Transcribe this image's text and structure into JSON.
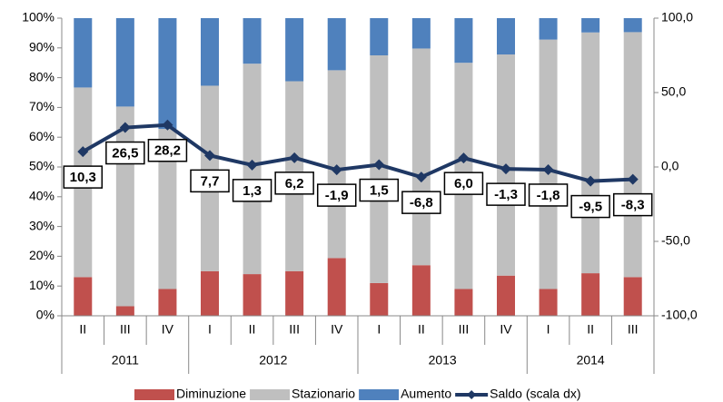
{
  "chart_data": {
    "type": "bar",
    "stacked": true,
    "categories": [
      "II",
      "III",
      "IV",
      "I",
      "II",
      "III",
      "IV",
      "I",
      "II",
      "III",
      "IV",
      "I",
      "II",
      "III"
    ],
    "years": [
      "2011",
      "2011",
      "2011",
      "2012",
      "2012",
      "2012",
      "2012",
      "2013",
      "2013",
      "2013",
      "2013",
      "2014",
      "2014",
      "2014"
    ],
    "series": [
      {
        "name": "Diminuzione",
        "type": "bar",
        "color": "#c0504d",
        "values": [
          13,
          3.2,
          9,
          15,
          14,
          15,
          19.4,
          11,
          17,
          9,
          13.5,
          9,
          14.3,
          13
        ]
      },
      {
        "name": "Stazionario",
        "type": "bar",
        "color": "#bfbfbf",
        "values": [
          63.7,
          67.1,
          53.8,
          62.3,
          70.7,
          63.8,
          63.1,
          76.5,
          72.8,
          76,
          74.3,
          83.8,
          80.9,
          82.3
        ]
      },
      {
        "name": "Aumento",
        "type": "bar",
        "color": "#4f81bd",
        "values": [
          23.3,
          29.7,
          37.2,
          22.7,
          15.3,
          21.2,
          17.5,
          12.5,
          10.2,
          15,
          12.2,
          7.2,
          4.8,
          4.7
        ]
      },
      {
        "name": "Saldo (scala dx)",
        "type": "line",
        "axis": "y2",
        "color": "#1f3864",
        "values": [
          10.3,
          26.5,
          28.2,
          7.7,
          1.3,
          6.2,
          -1.9,
          1.5,
          -6.8,
          6.0,
          -1.3,
          -1.8,
          -9.5,
          -8.3
        ],
        "value_labels": [
          "10,3",
          "26,5",
          "28,2",
          "7,7",
          "1,3",
          "6,2",
          "-1,9",
          "1,5",
          "-6,8",
          "6,0",
          "-1,3",
          "-1,8",
          "-9,5",
          "-8,3"
        ]
      }
    ],
    "ylim": [
      0,
      100
    ],
    "yticks": [
      {
        "value": 0,
        "label": "0%"
      },
      {
        "value": 10,
        "label": "10%"
      },
      {
        "value": 20,
        "label": "20%"
      },
      {
        "value": 30,
        "label": "30%"
      },
      {
        "value": 40,
        "label": "40%"
      },
      {
        "value": 50,
        "label": "50%"
      },
      {
        "value": 60,
        "label": "60%"
      },
      {
        "value": 70,
        "label": "70%"
      },
      {
        "value": 80,
        "label": "80%"
      },
      {
        "value": 90,
        "label": "90%"
      },
      {
        "value": 100,
        "label": "100%"
      }
    ],
    "y2lim": [
      -100,
      100
    ],
    "y2ticks": [
      {
        "value": -100,
        "label": "-100,0"
      },
      {
        "value": -50,
        "label": "-50,0"
      },
      {
        "value": 0,
        "label": "0,0"
      },
      {
        "value": 50,
        "label": "50,0"
      },
      {
        "value": 100,
        "label": "100,0"
      }
    ],
    "legend": "bottom"
  }
}
